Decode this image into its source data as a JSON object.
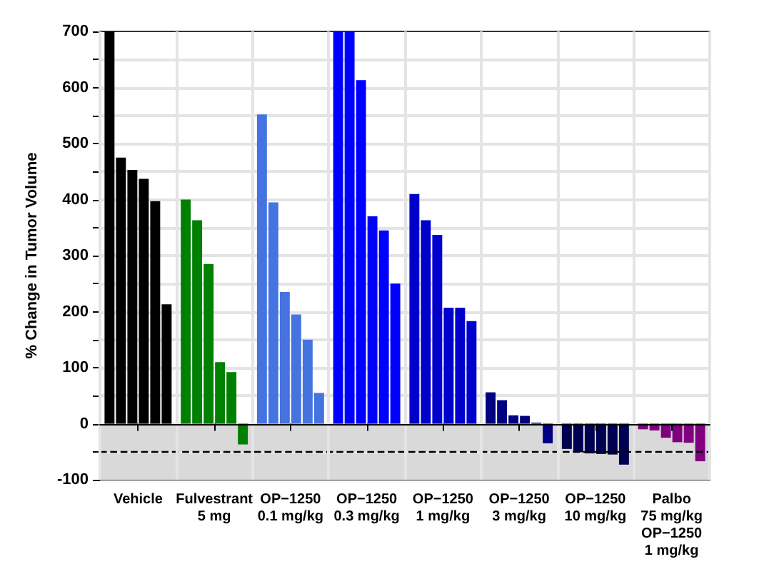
{
  "chart_data": {
    "type": "bar",
    "ylabel": "% Change in Tumor Volume",
    "categories": [
      "Vehicle",
      "Fulvestrant\n5 mg",
      "OP−1250\n0.1 mg/kg",
      "OP−1250\n0.3 mg/kg",
      "OP−1250\n1 mg/kg",
      "OP−1250\n3 mg/kg",
      "OP−1250\n10 mg/kg",
      "Palbo\n75 mg/kg\nOP−1250\n1 mg/kg"
    ],
    "series": [
      {
        "colors": [
          "#000000",
          "#008000",
          "#4573e0",
          "#0000ff",
          "#0000cd",
          "#000080",
          "#000050",
          "#800080"
        ],
        "values": [
          700,
          400,
          552,
          700,
          410,
          56,
          -45,
          -10
        ]
      },
      {
        "colors": [
          "#000000",
          "#008000",
          "#4573e0",
          "#0000ff",
          "#0000cd",
          "#000080",
          "#000050",
          "#800080"
        ],
        "values": [
          475,
          363,
          395,
          700,
          363,
          42,
          -51,
          -12
        ]
      },
      {
        "colors": [
          "#000000",
          "#008000",
          "#4573e0",
          "#0000ff",
          "#0000cd",
          "#000080",
          "#000050",
          "#800080"
        ],
        "values": [
          453,
          285,
          235,
          613,
          337,
          15,
          -53,
          -25
        ]
      },
      {
        "colors": [
          "#000000",
          "#008000",
          "#4573e0",
          "#0000ff",
          "#0000cd",
          "#000080",
          "#000050",
          "#800080"
        ],
        "values": [
          437,
          110,
          195,
          370,
          207,
          14,
          -54,
          -33
        ]
      },
      {
        "colors": [
          "#000000",
          "#008000",
          "#4573e0",
          "#0000ff",
          "#0000cd",
          "#000080",
          "#000050",
          "#800080"
        ],
        "values": [
          397,
          92,
          150,
          345,
          207,
          2,
          -55,
          -34
        ]
      },
      {
        "colors": [
          "#000000",
          "#008000",
          "#4573e0",
          "#0000ff",
          "#0000cd",
          "#000080",
          "#000050",
          "#800080"
        ],
        "values": [
          213,
          -37,
          55,
          250,
          183,
          -35,
          -73,
          -67
        ]
      }
    ],
    "ylim": [
      -100,
      700
    ],
    "yticks": [
      -100,
      {
        "value": -50,
        "label": null
      },
      0,
      {
        "value": 50,
        "label": null
      },
      100,
      {
        "value": 150,
        "label": null
      },
      200,
      {
        "value": 250,
        "label": null
      },
      300,
      {
        "value": 350,
        "label": null
      },
      400,
      {
        "value": 450,
        "label": null
      },
      500,
      {
        "value": 550,
        "label": null
      },
      600,
      {
        "value": 650,
        "label": null
      },
      700
    ],
    "grid": true,
    "bands": [
      {
        "axis": "y",
        "from": -100,
        "to": 0,
        "color": "#d9d9d9"
      }
    ],
    "ref_lines": [
      {
        "axis": "y",
        "value": -50,
        "line_style": "dashed",
        "color": "#000000"
      }
    ]
  }
}
